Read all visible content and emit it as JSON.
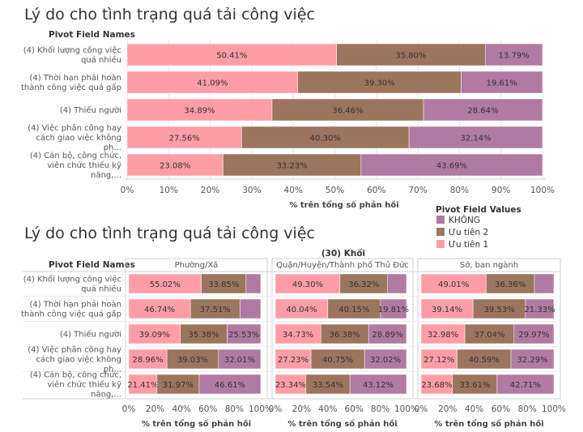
{
  "legend": {
    "title": "Pivot Field Values",
    "items": [
      {
        "name": "KHÔNG",
        "color": "#b07aa1"
      },
      {
        "name": "Ưu tiên 2",
        "color": "#9c755f"
      },
      {
        "name": "Ưu tiên 1",
        "color": "#ff9da7"
      }
    ]
  },
  "chart_data": [
    {
      "type": "bar",
      "orientation": "horizontal",
      "stacked": true,
      "title": "Lý do cho tình trạng quá tải công việc",
      "row_header": "Pivot Field Names",
      "categories": [
        "(4) Khối lượng công việc quá nhiều",
        "(4) Thời hạn phải hoàn thành công việc quá gấp",
        "(4) Thiếu người",
        "(4) Việc phân công hay cách giao việc không ph...",
        "(4) Cán bộ, công chức, viên chức thiếu kỹ năng,..."
      ],
      "series": [
        {
          "name": "Ưu tiên 1",
          "values": [
            50.41,
            41.09,
            34.89,
            27.56,
            23.08
          ]
        },
        {
          "name": "Ưu tiên 2",
          "values": [
            35.8,
            39.3,
            36.46,
            40.3,
            33.23
          ]
        },
        {
          "name": "KHÔNG",
          "values": [
            13.79,
            19.61,
            28.64,
            32.14,
            43.69
          ]
        }
      ],
      "xlabel": "% trên tổng số phản hồi",
      "xlim": [
        0,
        100
      ],
      "xticks": [
        "0%",
        "10%",
        "20%",
        "30%",
        "40%",
        "50%",
        "60%",
        "70%",
        "80%",
        "90%",
        "100%"
      ]
    },
    {
      "type": "bar",
      "orientation": "horizontal",
      "stacked": true,
      "title": "Lý do cho tình trạng quá tải công việc",
      "row_header": "Pivot Field Names",
      "facet_header": "(30) Khối",
      "categories": [
        "(4) Khối lượng công việc quá nhiều",
        "(4) Thời hạn phải hoàn thành công việc quá gấp",
        "(4) Thiếu người",
        "(4) Việc phân công hay cách giao việc không ph...",
        "(4) Cán bộ, công chức, viên chức thiếu kỹ năng,..."
      ],
      "xlabel": "% trên tổng số phản hồi",
      "xlim": [
        0,
        100
      ],
      "xticks": [
        "0%",
        "20%",
        "40%",
        "60%",
        "80%",
        "100%"
      ],
      "facets": [
        {
          "name": "Phường/Xã",
          "series": [
            {
              "name": "Ưu tiên 1",
              "values": [
                55.02,
                46.74,
                39.09,
                28.96,
                21.41
              ]
            },
            {
              "name": "Ưu tiên 2",
              "values": [
                33.85,
                37.51,
                35.38,
                39.03,
                31.97
              ]
            },
            {
              "name": "KHÔNG",
              "values": [
                11.13,
                15.75,
                25.53,
                32.01,
                46.61
              ]
            }
          ],
          "labels": {
            "Ưu tiên 1": [
              "55.02%",
              "46.74%",
              "39.09%",
              "28.96%",
              "21.41%"
            ],
            "Ưu tiên 2": [
              "33.85%",
              "37.51%",
              "35.38%",
              "39.03%",
              "31.97%"
            ],
            "KHÔNG": [
              "",
              "",
              "25.53%",
              "32.01%",
              "46.61%"
            ]
          }
        },
        {
          "name": "Quận/Huyện/Thành phố Thủ Đức",
          "series": [
            {
              "name": "Ưu tiên 1",
              "values": [
                49.3,
                40.04,
                34.73,
                27.23,
                23.34
              ]
            },
            {
              "name": "Ưu tiên 2",
              "values": [
                36.32,
                40.15,
                36.38,
                40.75,
                33.54
              ]
            },
            {
              "name": "KHÔNG",
              "values": [
                14.38,
                19.81,
                28.89,
                32.02,
                43.12
              ]
            }
          ],
          "labels": {
            "Ưu tiên 1": [
              "49.30%",
              "40.04%",
              "34.73%",
              "27.23%",
              "23.34%"
            ],
            "Ưu tiên 2": [
              "36.32%",
              "40.15%",
              "36.38%",
              "40.75%",
              "33.54%"
            ],
            "KHÔNG": [
              "",
              "19.81%",
              "28.89%",
              "32.02%",
              "43.12%"
            ]
          }
        },
        {
          "name": "Sở, ban ngành",
          "series": [
            {
              "name": "Ưu tiên 1",
              "values": [
                49.01,
                39.14,
                32.98,
                27.12,
                23.68
              ]
            },
            {
              "name": "Ưu tiên 2",
              "values": [
                36.36,
                39.53,
                37.04,
                40.59,
                33.61
              ]
            },
            {
              "name": "KHÔNG",
              "values": [
                14.63,
                21.33,
                29.97,
                32.29,
                42.71
              ]
            }
          ],
          "labels": {
            "Ưu tiên 1": [
              "49.01%",
              "39.14%",
              "32.98%",
              "27.12%",
              "23.68%"
            ],
            "Ưu tiên 2": [
              "36.36%",
              "39.53%",
              "37.04%",
              "40.59%",
              "33.61%"
            ],
            "KHÔNG": [
              "",
              "21.33%",
              "29.97%",
              "32.29%",
              "42.71%"
            ]
          }
        }
      ]
    }
  ]
}
